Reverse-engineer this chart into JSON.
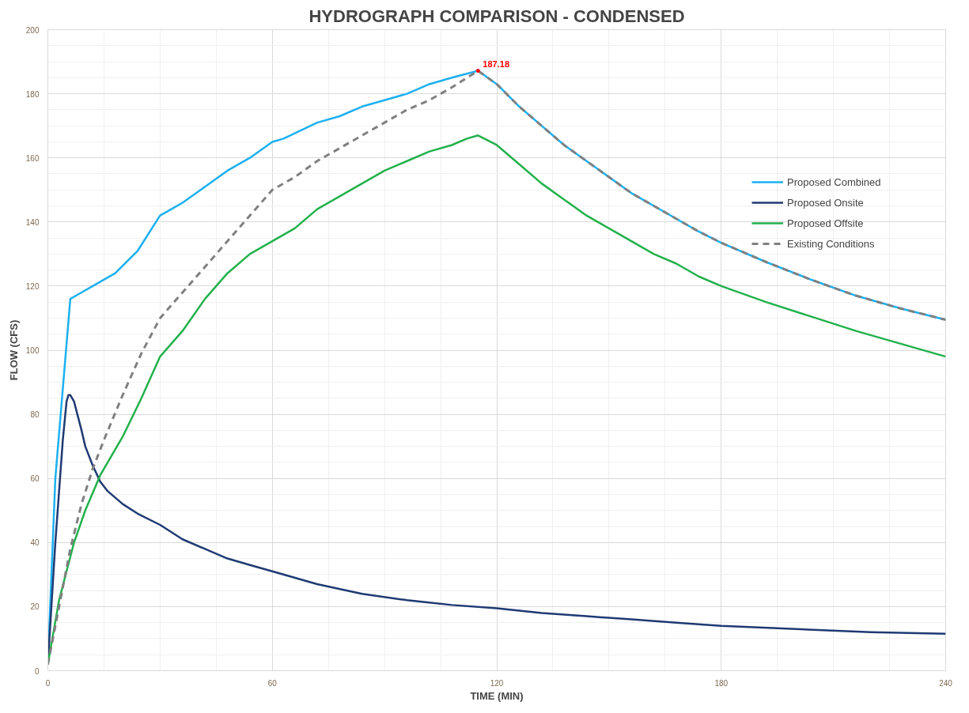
{
  "chart_data": {
    "type": "line",
    "title": "HYDROGRAPH COMPARISON - CONDENSED",
    "xlabel": "TIME (MIN)",
    "ylabel": "FLOW (CFS)",
    "xlim": [
      0,
      240
    ],
    "ylim": [
      0,
      200
    ],
    "xticks": [
      0,
      {
        "value": 15,
        "label": null
      },
      {
        "value": 30,
        "label": null
      },
      {
        "value": 45,
        "label": null
      },
      60,
      {
        "value": 75,
        "label": null
      },
      {
        "value": 90,
        "label": null
      },
      {
        "value": 105,
        "label": null
      },
      120,
      {
        "value": 135,
        "label": null
      },
      {
        "value": 150,
        "label": null
      },
      {
        "value": 165,
        "label": null
      },
      180,
      {
        "value": 195,
        "label": null
      },
      {
        "value": 210,
        "label": null
      },
      {
        "value": 225,
        "label": null
      },
      240
    ],
    "yticks": [
      0,
      {
        "value": 5,
        "label": null
      },
      {
        "value": 10,
        "label": null
      },
      {
        "value": 15,
        "label": null
      },
      20,
      {
        "value": 25,
        "label": null
      },
      {
        "value": 30,
        "label": null
      },
      {
        "value": 35,
        "label": null
      },
      40,
      {
        "value": 45,
        "label": null
      },
      {
        "value": 50,
        "label": null
      },
      {
        "value": 55,
        "label": null
      },
      60,
      {
        "value": 65,
        "label": null
      },
      {
        "value": 70,
        "label": null
      },
      {
        "value": 75,
        "label": null
      },
      80,
      {
        "value": 85,
        "label": null
      },
      {
        "value": 90,
        "label": null
      },
      {
        "value": 95,
        "label": null
      },
      100,
      {
        "value": 105,
        "label": null
      },
      {
        "value": 110,
        "label": null
      },
      {
        "value": 115,
        "label": null
      },
      120,
      {
        "value": 125,
        "label": null
      },
      {
        "value": 130,
        "label": null
      },
      {
        "value": 135,
        "label": null
      },
      140,
      {
        "value": 145,
        "label": null
      },
      {
        "value": 150,
        "label": null
      },
      {
        "value": 155,
        "label": null
      },
      160,
      {
        "value": 165,
        "label": null
      },
      {
        "value": 170,
        "label": null
      },
      {
        "value": 175,
        "label": null
      },
      180,
      {
        "value": 185,
        "label": null
      },
      {
        "value": 190,
        "label": null
      },
      {
        "value": 195,
        "label": null
      },
      200
    ],
    "grid": true,
    "legend": "right",
    "marker": "none",
    "annotations": [
      {
        "text": "187.18",
        "x": 115,
        "y": 187.18
      }
    ],
    "series": [
      {
        "name": "Proposed Combined",
        "color": "#1cb0f0",
        "line_style": "solid",
        "x": [
          0,
          2,
          6,
          9,
          12,
          18,
          24,
          30,
          33,
          36,
          42,
          48,
          54,
          60,
          63,
          72,
          78,
          84,
          90,
          96,
          102,
          108,
          115,
          120,
          126,
          132,
          138,
          144,
          150,
          156,
          162,
          168,
          174,
          180,
          192,
          204,
          216,
          228,
          240
        ],
        "values": [
          2,
          60,
          116,
          118,
          120,
          124,
          131,
          142,
          144,
          146,
          151,
          156,
          160,
          165,
          166,
          171,
          173,
          176,
          178,
          180,
          183,
          185,
          187.18,
          183,
          176,
          170,
          164,
          159,
          154,
          149,
          145,
          141,
          137,
          133.5,
          127.5,
          122,
          117,
          113,
          109.5
        ]
      },
      {
        "name": "Proposed Onsite",
        "color": "#1f3a73",
        "line_style": "solid",
        "x": [
          0,
          2,
          4,
          5,
          5.5,
          6,
          7,
          9,
          10,
          12,
          14,
          16,
          20,
          24,
          30,
          36,
          42,
          48,
          54,
          60,
          72,
          84,
          96,
          108,
          120,
          132,
          144,
          156,
          168,
          180,
          200,
          220,
          240
        ],
        "values": [
          2,
          40,
          72,
          84,
          86,
          86,
          84,
          75,
          70,
          64,
          59,
          56,
          52,
          49,
          45.5,
          41,
          38,
          35,
          33,
          31,
          27,
          24,
          22,
          20.5,
          19.5,
          18,
          17,
          16,
          15,
          14,
          13,
          12,
          11.5
        ]
      },
      {
        "name": "Proposed Offsite",
        "color": "#22b14c",
        "line_style": "solid",
        "x": [
          0,
          3,
          7,
          10,
          14,
          20,
          25,
          30,
          36,
          42,
          48,
          54,
          60,
          66,
          72,
          78,
          84,
          90,
          96,
          102,
          108,
          112,
          115,
          120,
          126,
          132,
          138,
          144,
          150,
          156,
          162,
          168,
          174,
          180,
          192,
          204,
          216,
          228,
          240
        ],
        "values": [
          2,
          22,
          40,
          50,
          61,
          73,
          85,
          98,
          106,
          116,
          124,
          130,
          134,
          138,
          144,
          148,
          152,
          156,
          159,
          162,
          164,
          166,
          167,
          164,
          158,
          152,
          147,
          142,
          138,
          134,
          130,
          127,
          123,
          120,
          115,
          110.5,
          106,
          102,
          98
        ]
      },
      {
        "name": "Existing Conditions",
        "color": "#808080",
        "line_style": "dashed",
        "x": [
          0,
          3,
          6,
          9,
          12,
          15,
          20,
          25,
          30,
          36,
          42,
          45,
          48,
          54,
          60,
          66,
          72,
          78,
          84,
          90,
          96,
          102,
          108,
          115,
          120,
          126,
          132,
          138,
          144,
          150,
          156,
          162,
          168,
          174,
          180,
          192,
          204,
          216,
          228,
          240
        ],
        "values": [
          2,
          20,
          38,
          52,
          63,
          72,
          86,
          99,
          110,
          118,
          126,
          130,
          134,
          142,
          150,
          154,
          159,
          163,
          167,
          171,
          175,
          178,
          182,
          187.18,
          183,
          176,
          170,
          164,
          159,
          154,
          149,
          145,
          141,
          137,
          133.5,
          127.5,
          122,
          117,
          113,
          109.5
        ]
      }
    ]
  }
}
